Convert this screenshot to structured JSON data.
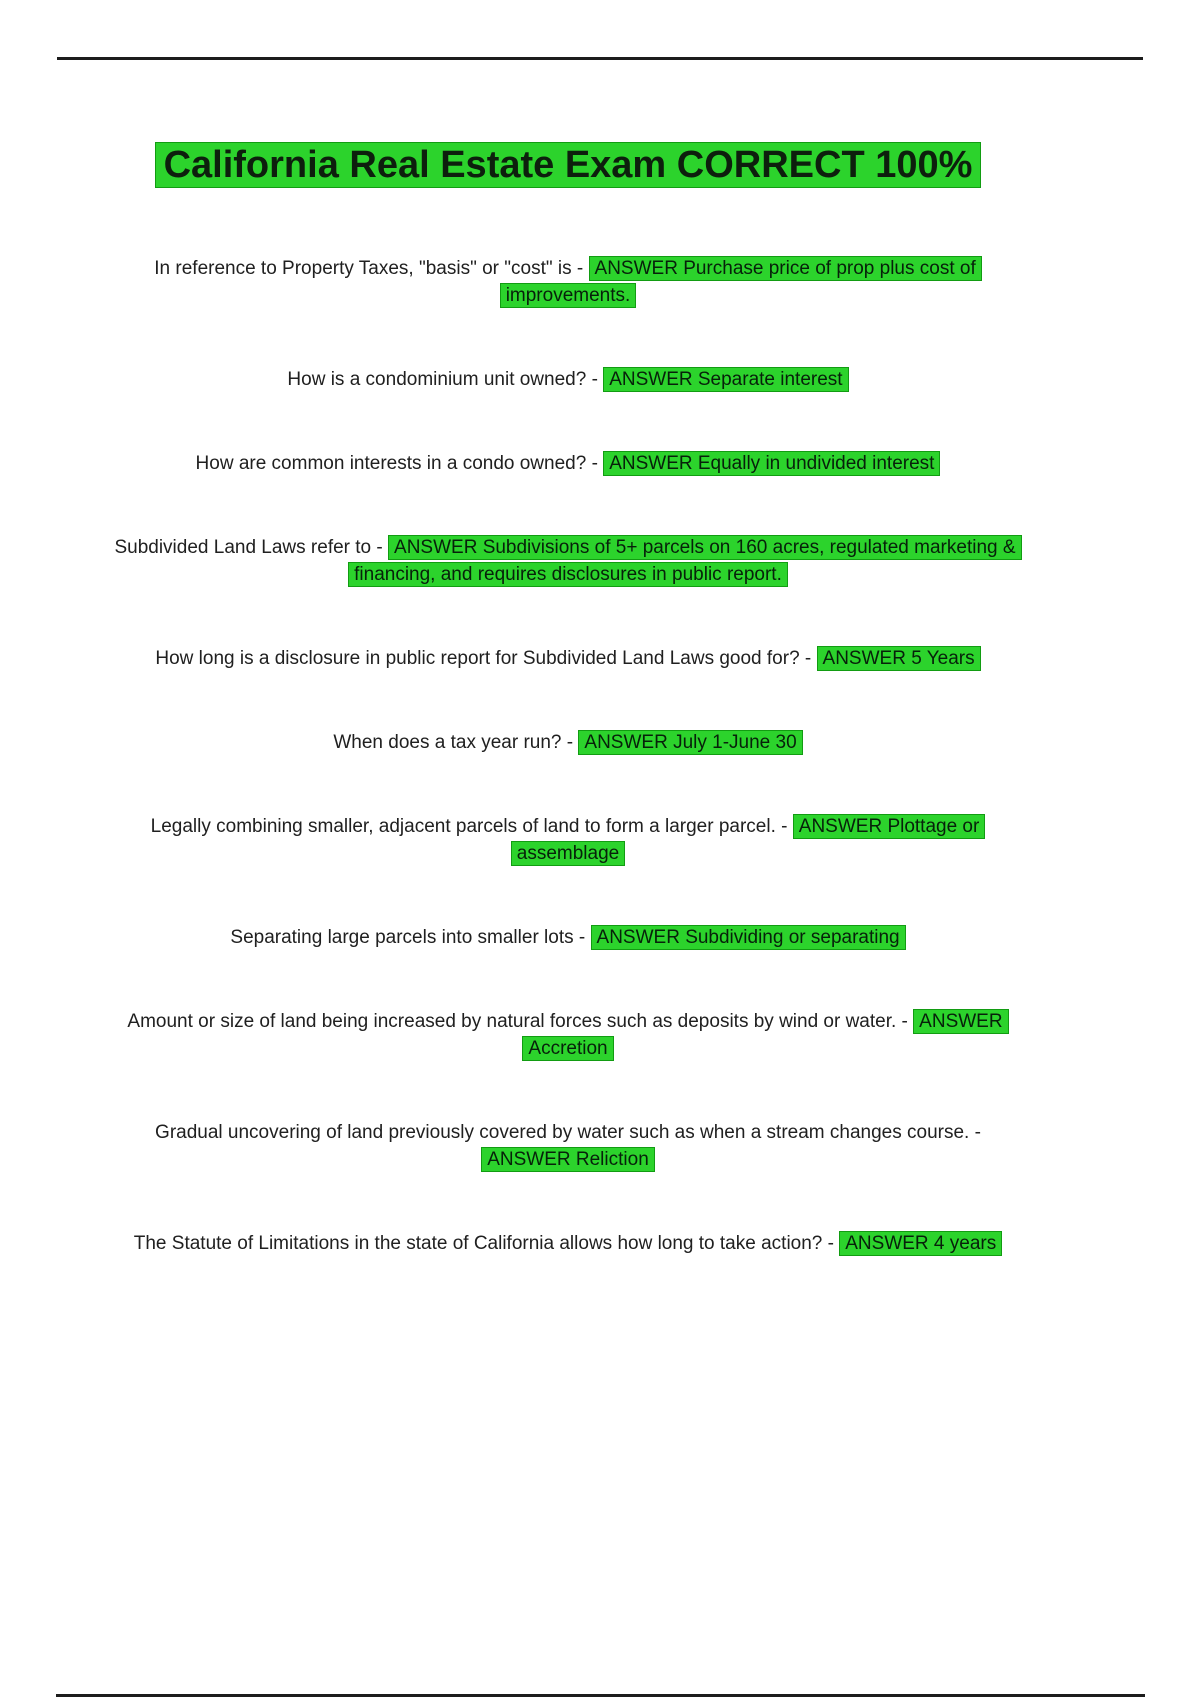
{
  "page": {
    "title": "California Real Estate Exam CORRECT 100%"
  },
  "colors": {
    "highlight": "#2cd32c",
    "highlight_border": "#129c12",
    "text": "#202020",
    "rule": "#1c1c1c"
  },
  "qa_items": [
    {
      "question": "In reference to Property Taxes, \"basis\" or \"cost\" is -",
      "sep": " ",
      "answer": "ANSWER Purchase price of prop plus cost of\nimprovements."
    },
    {
      "question": "How is a condominium unit owned? -",
      "sep": " ",
      "answer": "ANSWER Separate interest"
    },
    {
      "question": "How are common interests in a condo owned? -",
      "sep": " ",
      "answer": "ANSWER Equally in undivided interest"
    },
    {
      "question": "Subdivided Land Laws refer to -",
      "sep": " ",
      "answer": "ANSWER Subdivisions of 5+ parcels on 160 acres, regulated marketing &\nfinancing, and requires disclosures in public report."
    },
    {
      "question": "How long is a disclosure in public report for Subdivided Land Laws good for? -",
      "sep": " ",
      "answer": "ANSWER 5 Years"
    },
    {
      "question": "When does a tax year run? -",
      "sep": " ",
      "answer": "ANSWER July 1-June 30"
    },
    {
      "question": "Legally combining smaller, adjacent parcels of land to form a larger parcel. -",
      "sep": " ",
      "answer": "ANSWER Plottage or\nassemblage"
    },
    {
      "question": "Separating large parcels into smaller lots -",
      "sep": " ",
      "answer": "ANSWER Subdividing or separating"
    },
    {
      "question": "Amount or size of land being increased by natural forces such as deposits by wind or water. -",
      "sep": " ",
      "answer": "ANSWER\nAccretion"
    },
    {
      "question": "Gradual uncovering of land previously covered by water such as when a stream changes course. -",
      "sep": "\n",
      "answer": "ANSWER Reliction"
    },
    {
      "question": "The Statute of Limitations in the state of California allows how long to take action? -",
      "sep": " ",
      "answer": "ANSWER 4 years"
    }
  ]
}
